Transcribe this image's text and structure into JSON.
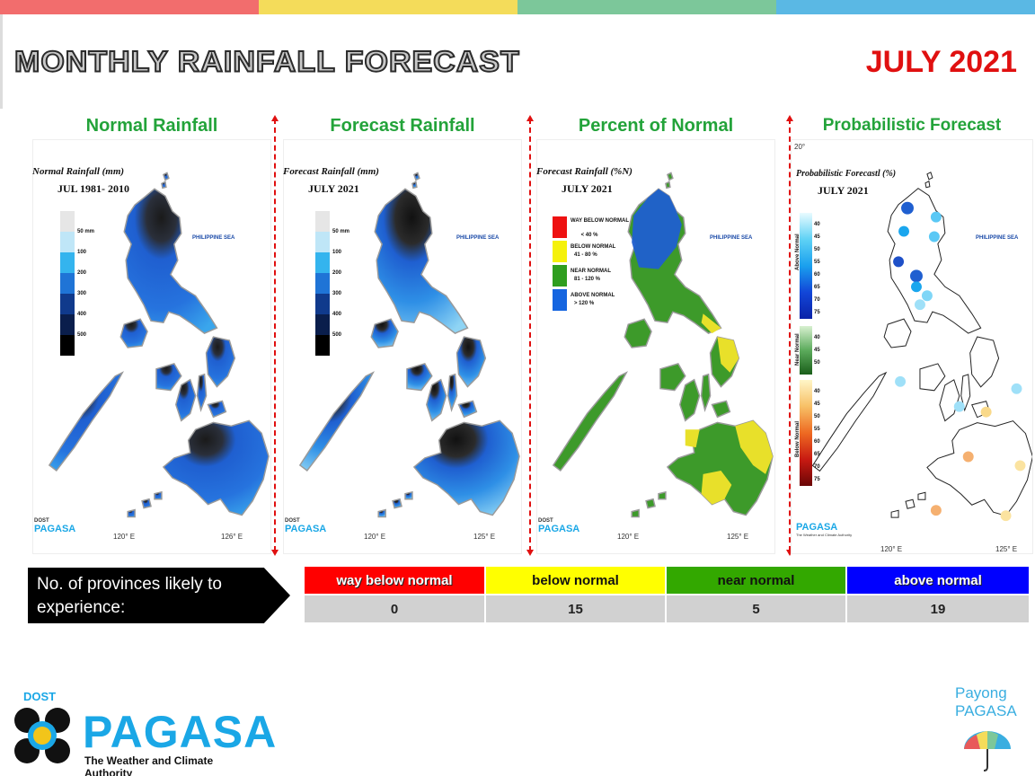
{
  "header": {
    "title": "MONTHLY RAINFALL FORECAST",
    "month": "JULY 2021",
    "stripe_colors": [
      "#f26d6d",
      "#f4dc5a",
      "#7cc79a",
      "#5ab8e4"
    ]
  },
  "panels": [
    {
      "title": "Normal Rainfall",
      "map_heading": "Normal Rainfall (mm)",
      "map_subheading": "JUL 1981- 2010",
      "sea_label": "PHILIPPINE SEA",
      "legend": [
        "50 mm",
        "100",
        "200",
        "300",
        "400",
        "500"
      ],
      "legend_colors": [
        "#e6e6e6",
        "#bfe6f7",
        "#34b4ee",
        "#1f74d6",
        "#103a8c",
        "#0a1e4c",
        "#000000"
      ],
      "coord_bottom_left": "120° E",
      "coord_bottom_right": "126° E"
    },
    {
      "title": "Forecast Rainfall",
      "map_heading": "Forecast Rainfall (mm)",
      "map_subheading": "JULY 2021",
      "sea_label": "PHILIPPINE SEA",
      "legend": [
        "50 mm",
        "100",
        "200",
        "300",
        "400",
        "500"
      ],
      "legend_colors": [
        "#e6e6e6",
        "#bfe6f7",
        "#34b4ee",
        "#1f74d6",
        "#103a8c",
        "#0a1e4c",
        "#000000"
      ],
      "coord_bottom_left": "120° E",
      "coord_bottom_right": "125° E"
    },
    {
      "title": "Percent of Normal",
      "map_heading": "Forecast Rainfall (%N)",
      "map_subheading": "JULY 2021",
      "sea_label": "PHILIPPINE SEA",
      "legend": [
        {
          "label": "WAY BELOW NORMAL",
          "range": "< 40 %",
          "color": "#ee1111"
        },
        {
          "label": "BELOW NORMAL",
          "range": "41 - 80 %",
          "color": "#f5f10a"
        },
        {
          "label": "NEAR NORMAL",
          "range": "81 - 120 %",
          "color": "#2f9e1f"
        },
        {
          "label": "ABOVE NORMAL",
          "range": "> 120 %",
          "color": "#1565e0"
        }
      ],
      "coord_bottom_left": "120° E",
      "coord_bottom_right": "125° E"
    },
    {
      "title": "Probabilistic Forecast",
      "map_heading": "Probabilistic Forecastl (%)",
      "map_subheading": "JULY 2021",
      "sea_label": "PHILIPPINE SEA",
      "coord_top": "20°",
      "legend_above_title": "Above Normal",
      "legend_near_title": "Near Normal",
      "legend_below_title": "Below Normal",
      "legend_above": [
        "40",
        "45",
        "50",
        "55",
        "60",
        "65",
        "70",
        "75"
      ],
      "legend_near": [
        "40",
        "45",
        "50"
      ],
      "legend_below": [
        "40",
        "45",
        "50",
        "55",
        "60",
        "65",
        "70",
        "75"
      ],
      "coord_bottom_left": "120° E",
      "coord_bottom_right": "125° E"
    }
  ],
  "mini_logo": {
    "dost": "DOST",
    "brand": "PAGASA",
    "payong": "Payong",
    "tagline": "The Weather and Climate Authority"
  },
  "provinces": {
    "label": "No. of provinces likely to experience:",
    "categories": [
      {
        "name": "way below normal",
        "count": "0",
        "color": "#ff0000"
      },
      {
        "name": "below normal",
        "count": "15",
        "color": "#ffff00"
      },
      {
        "name": "near normal",
        "count": "5",
        "color": "#33a800"
      },
      {
        "name": "above normal",
        "count": "19",
        "color": "#0000ff"
      }
    ]
  },
  "footer": {
    "dost": "DOST",
    "brand": "PAGASA",
    "tagline": "The Weather and Climate Authority",
    "payong_line1": "Payong",
    "payong_line2": "PAGASA"
  }
}
